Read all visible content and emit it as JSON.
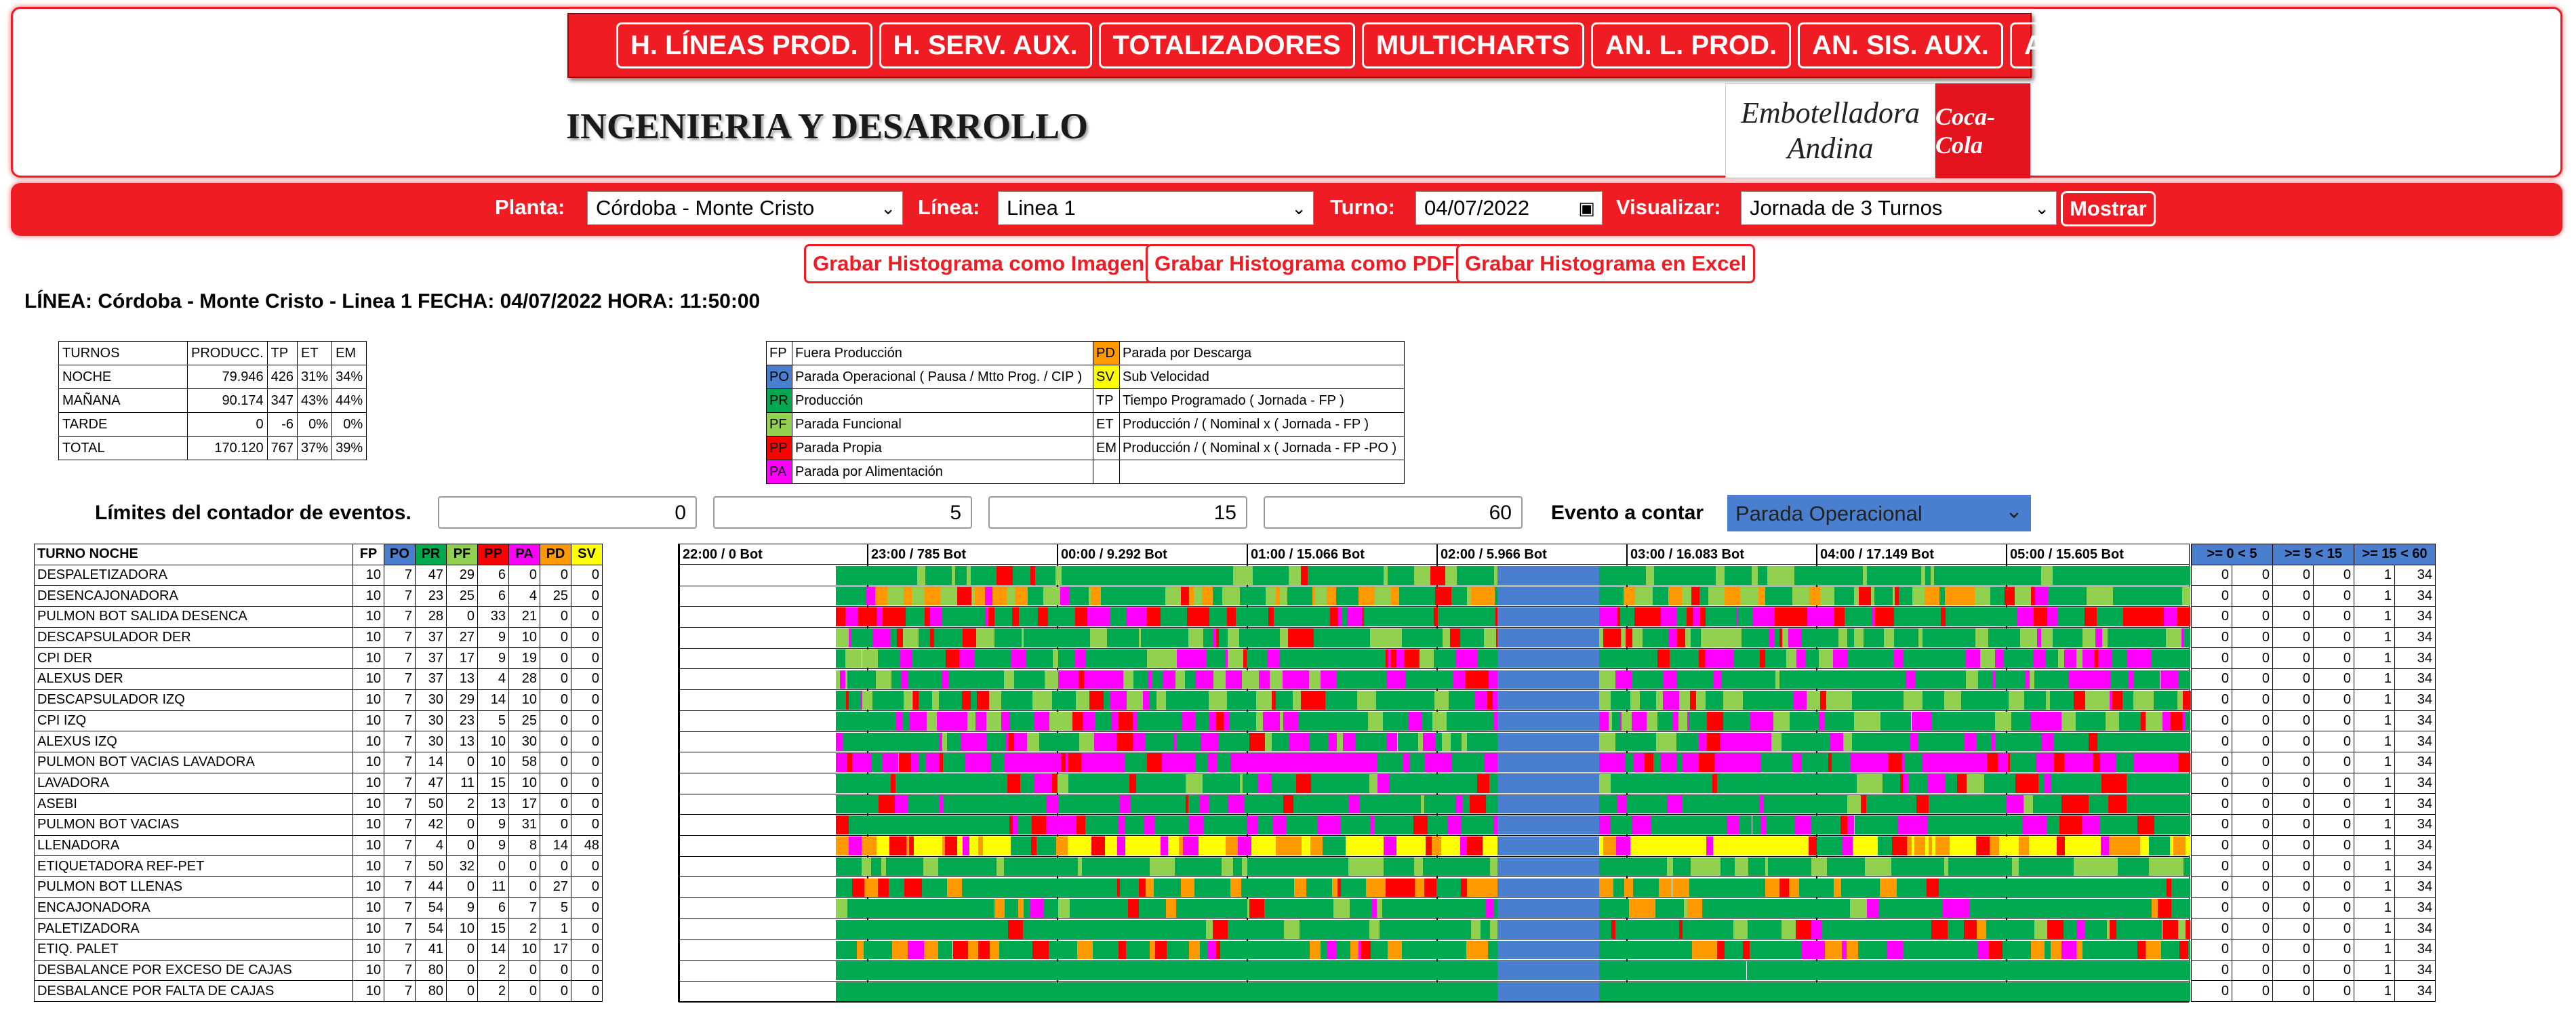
{
  "nav": [
    "H. LÍNEAS PROD.",
    "H. SERV. AUX.",
    "TOTALIZADORES",
    "MULTICHARTS",
    "AN. L. PROD.",
    "AN. SIS. AUX.",
    "AN. TOT."
  ],
  "brand": "INGENIERIA Y DESARROLLO",
  "logo": {
    "line1": "Embotelladora",
    "line2": "Andina",
    "coke": "Coca-Cola"
  },
  "filters": {
    "planta_label": "Planta:",
    "planta_value": "Córdoba - Monte Cristo",
    "linea_label": "Línea:",
    "linea_value": "Linea 1",
    "turno_label": "Turno:",
    "turno_value": "04/07/2022",
    "visual_label": "Visualizar:",
    "visual_value": "Jornada de 3 Turnos",
    "show_button": "Mostrar"
  },
  "buttons": {
    "img": "Grabar Histograma como Imagen",
    "pdf": "Grabar Histograma como PDF",
    "excel": "Grabar Histograma en Excel"
  },
  "line_title": "LÍNEA: Córdoba - Monte Cristo - Linea 1 FECHA: 04/07/2022 HORA: 11:50:00",
  "summary": {
    "headers": [
      "TURNOS",
      "PRODUCC.",
      "TP",
      "ET",
      "EM"
    ],
    "rows": [
      [
        "NOCHE",
        "79.946",
        "426",
        "31%",
        "34%"
      ],
      [
        "MAÑANA",
        "90.174",
        "347",
        "43%",
        "44%"
      ],
      [
        "TARDE",
        "0",
        "-6",
        "0%",
        "0%"
      ],
      [
        "TOTAL",
        "170.120",
        "767",
        "37%",
        "39%"
      ]
    ]
  },
  "legend": [
    {
      "code": "FP",
      "text": "Fuera Producción",
      "color": "#ffffff",
      "code2": "PD",
      "text2": "Parada por Descarga",
      "color2": "#ff9900"
    },
    {
      "code": "PO",
      "text": "Parada Operacional ( Pausa / Mtto Prog. / CIP )",
      "color": "#4a7fd0",
      "code2": "SV",
      "text2": "Sub Velocidad",
      "color2": "#ffff00"
    },
    {
      "code": "PR",
      "text": "Producción",
      "color": "#00a84f",
      "code2": "TP",
      "text2": "Tiempo Programado ( Jornada - FP )",
      "color2": "#ffffff"
    },
    {
      "code": "PF",
      "text": "Parada Funcional",
      "color": "#92d050",
      "code2": "ET",
      "text2": "Producción / ( Nominal x ( Jornada - FP )",
      "color2": "#ffffff"
    },
    {
      "code": "PP",
      "text": "Parada Propia",
      "color": "#ff0000",
      "code2": "EM",
      "text2": "Producción / ( Nominal x ( Jornada - FP -PO )",
      "color2": "#ffffff"
    },
    {
      "code": "PA",
      "text": "Parada por Alimentación",
      "color": "#ff00ff",
      "code2": "",
      "text2": "",
      "color2": "#ffffff"
    }
  ],
  "counter": {
    "label": "Límites del contador de eventos.",
    "values": [
      "0",
      "5",
      "15",
      "60"
    ],
    "event_label": "Evento a contar",
    "event_value": "Parada Operacional"
  },
  "colors": {
    "FP": "#ffffff",
    "PO": "#4a7fd0",
    "PR": "#00a84f",
    "PF": "#92d050",
    "PP": "#ff0000",
    "PA": "#ff00ff",
    "PD": "#ff9900",
    "SV": "#ffff00"
  },
  "line_table": {
    "headers": [
      "TURNO NOCHE",
      "FP",
      "PO",
      "PR",
      "PF",
      "PP",
      "PA",
      "PD",
      "SV"
    ],
    "rows": [
      [
        "DESPALETIZADORA",
        "10",
        "7",
        "47",
        "29",
        "6",
        "0",
        "0",
        "0"
      ],
      [
        "DESENCAJONADORA",
        "10",
        "7",
        "23",
        "25",
        "6",
        "4",
        "25",
        "0"
      ],
      [
        "PULMON BOT SALIDA DESENCA",
        "10",
        "7",
        "28",
        "0",
        "33",
        "21",
        "0",
        "0"
      ],
      [
        "DESCAPSULADOR DER",
        "10",
        "7",
        "37",
        "27",
        "9",
        "10",
        "0",
        "0"
      ],
      [
        "CPI DER",
        "10",
        "7",
        "37",
        "17",
        "9",
        "19",
        "0",
        "0"
      ],
      [
        "ALEXUS DER",
        "10",
        "7",
        "37",
        "13",
        "4",
        "28",
        "0",
        "0"
      ],
      [
        "DESCAPSULADOR IZQ",
        "10",
        "7",
        "30",
        "29",
        "14",
        "10",
        "0",
        "0"
      ],
      [
        "CPI IZQ",
        "10",
        "7",
        "30",
        "23",
        "5",
        "25",
        "0",
        "0"
      ],
      [
        "ALEXUS IZQ",
        "10",
        "7",
        "30",
        "13",
        "10",
        "30",
        "0",
        "0"
      ],
      [
        "PULMON BOT VACIAS LAVADORA",
        "10",
        "7",
        "14",
        "0",
        "10",
        "58",
        "0",
        "0"
      ],
      [
        "LAVADORA",
        "10",
        "7",
        "47",
        "11",
        "15",
        "10",
        "0",
        "0"
      ],
      [
        "ASEBI",
        "10",
        "7",
        "50",
        "2",
        "13",
        "17",
        "0",
        "0"
      ],
      [
        "PULMON BOT VACIAS",
        "10",
        "7",
        "42",
        "0",
        "9",
        "31",
        "0",
        "0"
      ],
      [
        "LLENADORA",
        "10",
        "7",
        "4",
        "0",
        "9",
        "8",
        "14",
        "48"
      ],
      [
        "ETIQUETADORA REF-PET",
        "10",
        "7",
        "50",
        "32",
        "0",
        "0",
        "0",
        "0"
      ],
      [
        "PULMON BOT LLENAS",
        "10",
        "7",
        "44",
        "0",
        "11",
        "0",
        "27",
        "0"
      ],
      [
        "ENCAJONADORA",
        "10",
        "7",
        "54",
        "9",
        "6",
        "7",
        "5",
        "0"
      ],
      [
        "PALETIZADORA",
        "10",
        "7",
        "54",
        "10",
        "15",
        "2",
        "1",
        "0"
      ],
      [
        "ETIQ. PALET",
        "10",
        "7",
        "41",
        "0",
        "14",
        "10",
        "17",
        "0"
      ],
      [
        "DESBALANCE POR EXCESO DE CAJAS",
        "10",
        "7",
        "80",
        "0",
        "2",
        "0",
        "0",
        "0"
      ],
      [
        "DESBALANCE POR FALTA DE CAJAS",
        "10",
        "7",
        "80",
        "0",
        "2",
        "0",
        "0",
        "0"
      ]
    ]
  },
  "timeline": {
    "ticks": [
      "22:00 / 0 Bot",
      "23:00 / 785 Bot",
      "00:00 / 9.292 Bot",
      "01:00 / 15.066 Bot",
      "02:00 / 5.966 Bot",
      "03:00 / 16.083 Bot",
      "04:00 / 17.149 Bot",
      "05:00 / 15.605 Bot"
    ]
  },
  "right_table": {
    "headers": [
      ">= 0 < 5",
      ">= 5 < 15",
      ">= 15 < 60"
    ],
    "rows": [
      [
        "0",
        "0",
        "0",
        "0",
        "1",
        "34"
      ],
      [
        "0",
        "0",
        "0",
        "0",
        "1",
        "34"
      ],
      [
        "0",
        "0",
        "0",
        "0",
        "1",
        "34"
      ],
      [
        "0",
        "0",
        "0",
        "0",
        "1",
        "34"
      ],
      [
        "0",
        "0",
        "0",
        "0",
        "1",
        "34"
      ],
      [
        "0",
        "0",
        "0",
        "0",
        "1",
        "34"
      ],
      [
        "0",
        "0",
        "0",
        "0",
        "1",
        "34"
      ],
      [
        "0",
        "0",
        "0",
        "0",
        "1",
        "34"
      ],
      [
        "0",
        "0",
        "0",
        "0",
        "1",
        "34"
      ],
      [
        "0",
        "0",
        "0",
        "0",
        "1",
        "34"
      ],
      [
        "0",
        "0",
        "0",
        "0",
        "1",
        "34"
      ],
      [
        "0",
        "0",
        "0",
        "0",
        "1",
        "34"
      ],
      [
        "0",
        "0",
        "0",
        "0",
        "1",
        "34"
      ],
      [
        "0",
        "0",
        "0",
        "0",
        "1",
        "34"
      ],
      [
        "0",
        "0",
        "0",
        "0",
        "1",
        "34"
      ],
      [
        "0",
        "0",
        "0",
        "0",
        "1",
        "34"
      ],
      [
        "0",
        "0",
        "0",
        "0",
        "1",
        "34"
      ],
      [
        "0",
        "0",
        "0",
        "0",
        "1",
        "34"
      ],
      [
        "0",
        "0",
        "0",
        "0",
        "1",
        "34"
      ],
      [
        "0",
        "0",
        "0",
        "0",
        "1",
        "34"
      ],
      [
        "0",
        "0",
        "0",
        "0",
        "1",
        "34"
      ]
    ]
  }
}
